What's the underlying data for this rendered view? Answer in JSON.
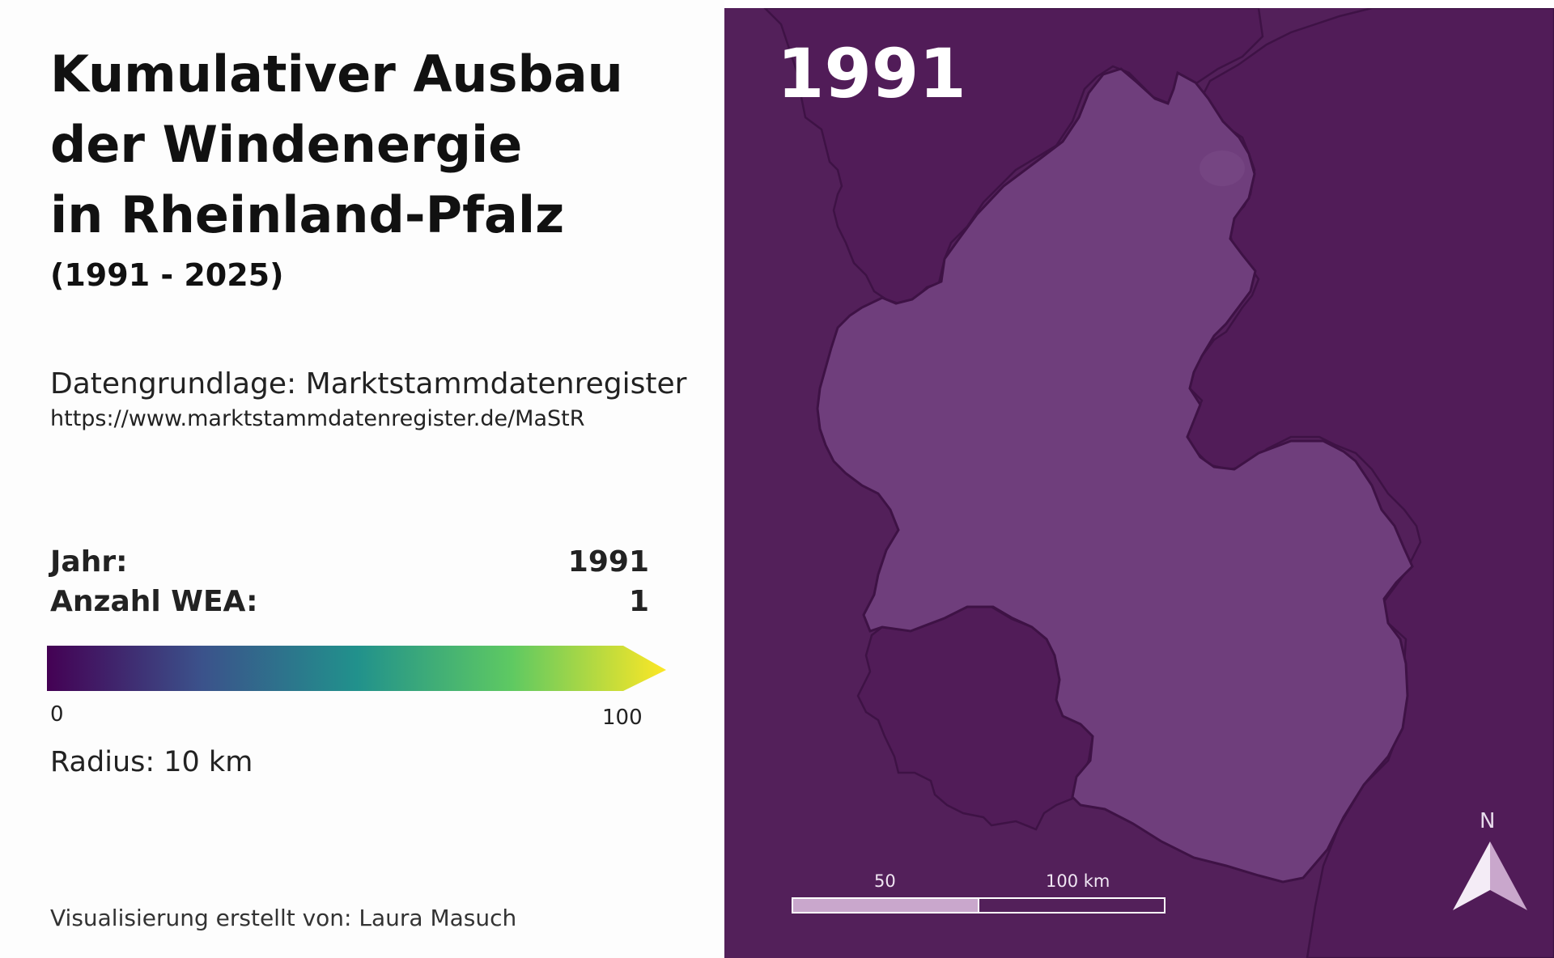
{
  "title": {
    "line1": "Kumulativer Ausbau",
    "line2": "der Windenergie",
    "line3": "in Rheinland-Pfalz",
    "period": "(1991 - 2025)"
  },
  "source": {
    "label": "Datengrundlage: Marktstammdatenregister",
    "url": "https://www.marktstammdatenregister.de/MaStR"
  },
  "stats": {
    "year_label": "Jahr:",
    "year_value": "1991",
    "count_label": "Anzahl WEA:",
    "count_value": "1"
  },
  "legend": {
    "min": "0",
    "max": "100",
    "colormap": [
      "#440154",
      "#3b528b",
      "#21918c",
      "#5ec962",
      "#fde725"
    ],
    "radius": "Radius: 10 km"
  },
  "credit": "Visualisierung erstellt von: Laura Masuch",
  "map": {
    "year_overlay": "1991",
    "scalebar": {
      "label_mid": "50",
      "label_end": "100 km"
    },
    "north_label": "N",
    "colors": {
      "background": "#53205a",
      "state_fill": "#6f3e7c",
      "neighbor_fill": "#511c58",
      "border": "#3e1245",
      "density_hint": "#7a4a86"
    }
  }
}
